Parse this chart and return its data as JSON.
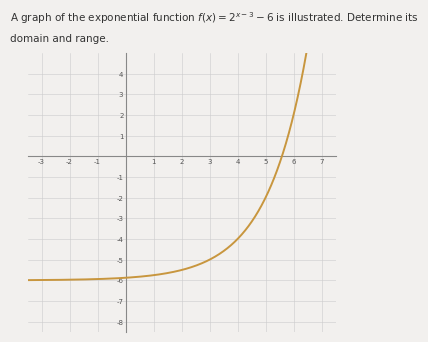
{
  "title_line1": "A graph of the exponential function $f(x) = 2^{x-3} - 6$ is illustrated. Determine its",
  "title_line2": "domain and range.",
  "title_fontsize": 7.5,
  "xlim": [
    -3.5,
    7.5
  ],
  "ylim": [
    -8.5,
    5.0
  ],
  "xticks": [
    -3,
    -2,
    -1,
    0,
    1,
    2,
    3,
    4,
    5,
    6,
    7
  ],
  "yticks": [
    -8,
    -7,
    -6,
    -5,
    -4,
    -3,
    -2,
    -1,
    0,
    1,
    2,
    3,
    4
  ],
  "curve_color": "#C8963E",
  "curve_linewidth": 1.4,
  "background_color": "#f2f0ee",
  "grid_color": "#cccccc",
  "axis_color": "#888888",
  "tick_fontsize": 5.0,
  "x_start": -3.5,
  "x_end": 7.0
}
